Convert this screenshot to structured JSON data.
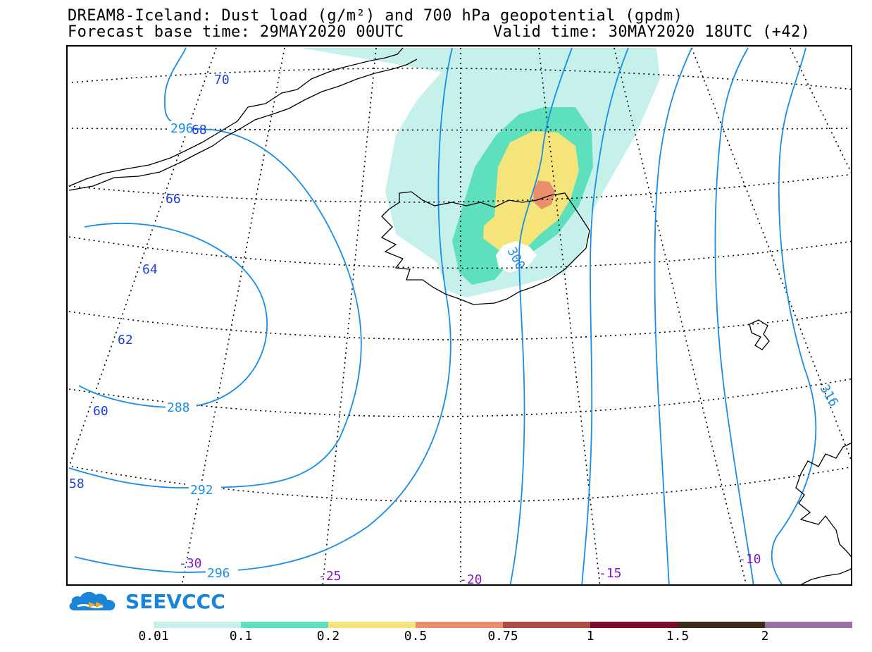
{
  "title": {
    "line1": "DREAM8-Iceland: Dust load (g/m²) and 700 hPa geopotential (gpdm)",
    "base_time": "Forecast base time: 29MAY2020 00UTC",
    "valid_time": "Valid time: 30MAY2020 18UTC (+42)"
  },
  "logo": {
    "text": "SEEVCCC"
  },
  "map": {
    "lat_labels": [
      "70",
      "68",
      "66",
      "64",
      "62",
      "60",
      "58"
    ],
    "lon_labels": [
      "-30",
      "-25",
      "-20",
      "-15",
      "-10"
    ],
    "contour_labels": [
      "296",
      "288",
      "292",
      "296",
      "300",
      "316"
    ],
    "colors": {
      "contour": "#1a8de6",
      "lat_label": "#1f3fe0",
      "lon_label": "#8a18c8",
      "coast": "#000000"
    }
  },
  "legend": {
    "labels": [
      "0.01",
      "0.1",
      "0.2",
      "0.5",
      "0.75",
      "1",
      "1.5",
      "2"
    ],
    "colors": [
      "#c6f1ea",
      "#5fe0bc",
      "#f5e47a",
      "#e98f6b",
      "#ad4c45",
      "#7e0d2d",
      "#3d2b1a",
      "#9b6ea6"
    ]
  }
}
